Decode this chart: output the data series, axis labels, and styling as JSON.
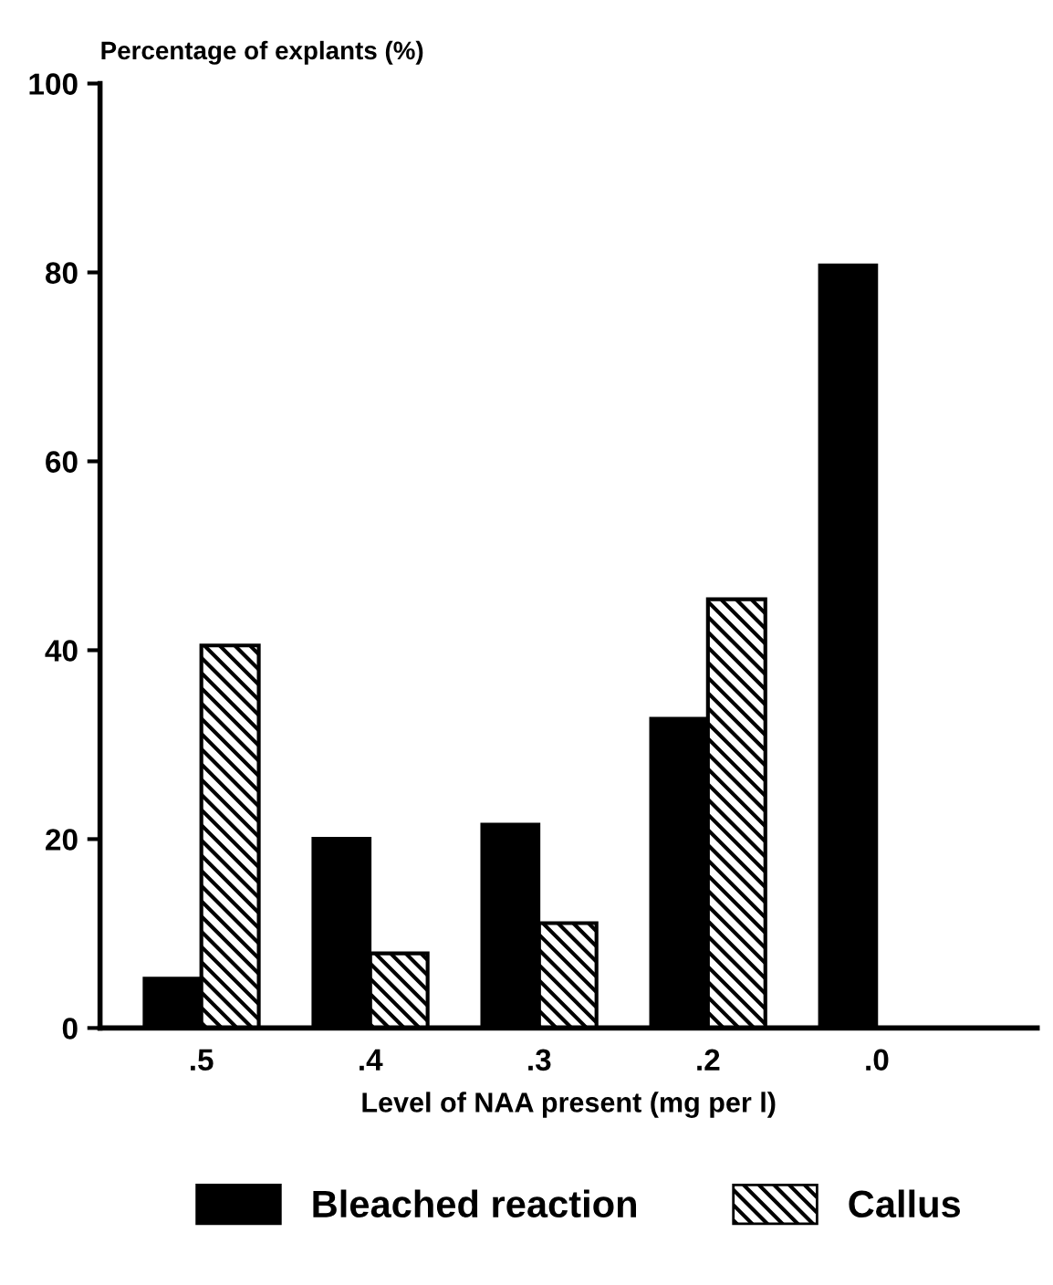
{
  "chart_data": {
    "type": "bar",
    "ylabel": "Percentage of explants (%)",
    "xlabel": "Level of NAA present (mg per l)",
    "categories": [
      ".5",
      ".4",
      ".3",
      ".2",
      ".0"
    ],
    "series": [
      {
        "name": "Bleached reaction",
        "color": "#000000",
        "values": [
          5.3,
          20.1,
          21.6,
          32.8,
          80.8
        ]
      },
      {
        "name": "Callus",
        "color": "#000000",
        "values": [
          40.5,
          7.9,
          11.1,
          45.4,
          0
        ]
      }
    ],
    "ylim": [
      0,
      100
    ],
    "yticks": [
      0,
      20,
      40,
      60,
      80,
      100
    ],
    "grid": false,
    "legend": "bottom"
  }
}
